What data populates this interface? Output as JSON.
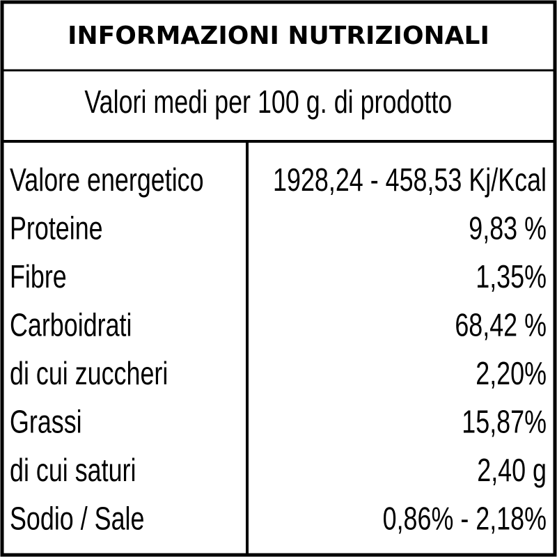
{
  "header": {
    "title": "INFORMAZIONI NUTRIZIONALI",
    "subtitle": "Valori medi per 100 g. di prodotto"
  },
  "table": {
    "rows": [
      [
        "Valore energetico",
        "1928,24 - 458,53 Kj/Kcal"
      ],
      [
        "Proteine",
        "9,83 %"
      ],
      [
        "Fibre",
        "1,35%"
      ],
      [
        "Carboidrati",
        "68,42 %"
      ],
      [
        "di cui zuccheri",
        "2,20%"
      ],
      [
        "Grassi",
        "15,87%"
      ],
      [
        "di cui saturi",
        "2,40 g"
      ],
      [
        "Sodio / Sale",
        "0,86% - 2,18%"
      ]
    ]
  }
}
